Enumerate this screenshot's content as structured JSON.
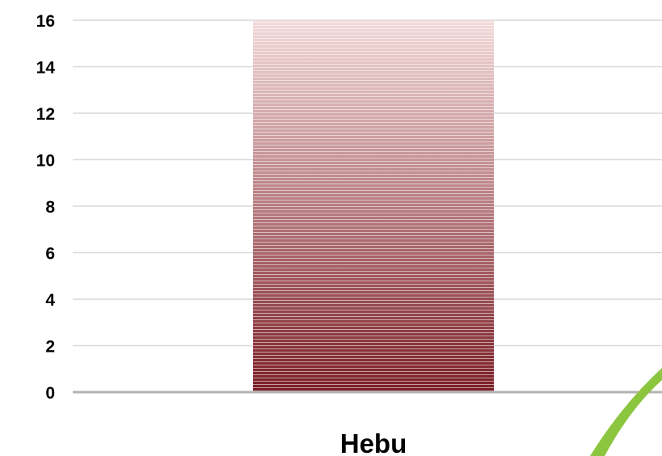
{
  "chart_data": {
    "type": "bar",
    "categories": [
      "Hebu"
    ],
    "values": [
      16
    ],
    "ylim": [
      0,
      16
    ],
    "yticks": [
      0,
      2,
      4,
      6,
      8,
      10,
      12,
      14,
      16
    ],
    "title": "",
    "xlabel": "",
    "ylabel": "",
    "grid": true,
    "legend": "none",
    "colors": {
      "bar_top": "#f3dada",
      "bar_bottom": "#7a1d25",
      "bar_stripe": "#ffffff",
      "gridline": "#d9d9d9",
      "axis": "#b3b3b3",
      "decoration": "#8cc63f"
    }
  }
}
